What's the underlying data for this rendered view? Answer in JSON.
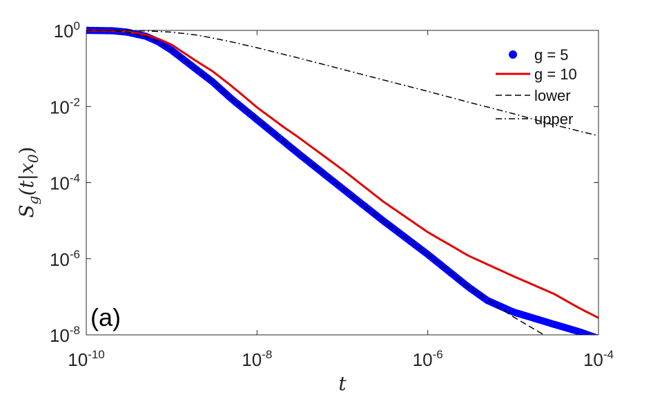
{
  "chart_data": {
    "type": "line",
    "xscale": "log",
    "yscale": "log",
    "xlim": [
      1e-10,
      0.0001
    ],
    "ylim": [
      1e-08,
      1
    ],
    "xlabel": "t",
    "ylabel": "S_g(t|x_0)",
    "panel_label": "(a)",
    "grid": false,
    "legend_position": "top-right",
    "x_ticks": [
      {
        "base": "10",
        "exp": "-10",
        "value": 1e-10
      },
      {
        "base": "10",
        "exp": "-8",
        "value": 1e-08
      },
      {
        "base": "10",
        "exp": "-6",
        "value": 1e-06
      },
      {
        "base": "10",
        "exp": "-4",
        "value": 0.0001
      }
    ],
    "y_ticks": [
      {
        "base": "10",
        "exp": "0",
        "value": 1
      },
      {
        "base": "10",
        "exp": "-2",
        "value": 0.01
      },
      {
        "base": "10",
        "exp": "-4",
        "value": 0.0001
      },
      {
        "base": "10",
        "exp": "-6",
        "value": 1e-06
      },
      {
        "base": "10",
        "exp": "-8",
        "value": 1e-08
      }
    ],
    "series": [
      {
        "name": "g = 5",
        "style": "markers",
        "color": "#0000ff",
        "x": [
          1e-10,
          2e-10,
          3e-10,
          5e-10,
          7e-10,
          1e-09,
          2e-09,
          3e-09,
          5e-09,
          1e-08,
          3e-08,
          1e-07,
          3e-07,
          1e-06,
          3e-06,
          5e-06,
          1e-05,
          3e-05,
          6e-05,
          0.0001
        ],
        "y": [
          1.0,
          0.98,
          0.9,
          0.7,
          0.5,
          0.3,
          0.09,
          0.045,
          0.016,
          0.0045,
          0.0006,
          7e-05,
          1e-05,
          1.3e-06,
          1.8e-07,
          8e-08,
          4e-08,
          1.9e-08,
          1.2e-08,
          8e-09
        ]
      },
      {
        "name": "g = 10",
        "style": "solid",
        "color": "#e00000",
        "x": [
          1e-10,
          2e-10,
          3e-10,
          5e-10,
          7e-10,
          1e-09,
          2e-09,
          3e-09,
          5e-09,
          1e-08,
          2e-08,
          3e-08,
          1e-07,
          3e-07,
          1e-06,
          3e-06,
          1e-05,
          3e-05,
          6e-05,
          0.0001
        ],
        "y": [
          1.0,
          0.98,
          0.92,
          0.76,
          0.6,
          0.42,
          0.15,
          0.085,
          0.035,
          0.0095,
          0.003,
          0.0016,
          0.00022,
          3.2e-05,
          5e-06,
          1.2e-06,
          3.5e-07,
          1.2e-07,
          5e-08,
          2.8e-08
        ]
      },
      {
        "name": "lower",
        "style": "dashed",
        "color": "#000000",
        "x": [
          1e-10,
          2e-10,
          3e-10,
          5e-10,
          7e-10,
          1e-09,
          2e-09,
          3e-09,
          5e-09,
          1e-08,
          3e-08,
          1e-07,
          3e-07,
          1e-06,
          3e-06,
          1e-05,
          3e-05,
          0.0001
        ],
        "y": [
          1.0,
          0.98,
          0.9,
          0.7,
          0.5,
          0.3,
          0.09,
          0.045,
          0.016,
          0.0045,
          0.0006,
          7e-05,
          1e-05,
          1.3e-06,
          1.8e-07,
          3e-08,
          7e-09,
          2e-09
        ]
      },
      {
        "name": "upper",
        "style": "dashdot",
        "color": "#000000",
        "x": [
          1e-10,
          2e-10,
          3e-10,
          5e-10,
          1e-09,
          2e-09,
          3e-09,
          5e-09,
          1e-08,
          3e-08,
          1e-07,
          3e-07,
          1e-06,
          3e-06,
          1e-05,
          3e-05,
          0.0001
        ],
        "y": [
          1.0,
          1.0,
          0.99,
          0.97,
          0.9,
          0.75,
          0.63,
          0.5,
          0.35,
          0.19,
          0.095,
          0.05,
          0.025,
          0.013,
          0.0065,
          0.0033,
          0.0017
        ]
      }
    ]
  }
}
